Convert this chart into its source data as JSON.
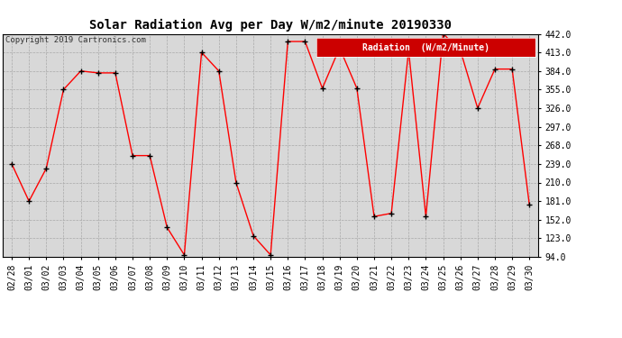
{
  "title": "Solar Radiation Avg per Day W/m2/minute 20190330",
  "copyright": "Copyright 2019 Cartronics.com",
  "legend_label": "Radiation  (W/m2/Minute)",
  "dates": [
    "02/28",
    "03/01",
    "03/02",
    "03/03",
    "03/04",
    "03/05",
    "03/06",
    "03/07",
    "03/08",
    "03/09",
    "03/10",
    "03/11",
    "03/12",
    "03/13",
    "03/14",
    "03/15",
    "03/16",
    "03/17",
    "03/18",
    "03/19",
    "03/20",
    "03/21",
    "03/22",
    "03/23",
    "03/24",
    "03/25",
    "03/26",
    "03/27",
    "03/28",
    "03/29",
    "03/30"
  ],
  "values": [
    239,
    181,
    232,
    355,
    384,
    381,
    381,
    252,
    252,
    140,
    97,
    413,
    384,
    210,
    127,
    97,
    430,
    430,
    357,
    420,
    357,
    157,
    162,
    416,
    157,
    442,
    416,
    326,
    387,
    387,
    175
  ],
  "ylim": [
    94.0,
    442.0
  ],
  "yticks": [
    94.0,
    123.0,
    152.0,
    181.0,
    210.0,
    239.0,
    268.0,
    297.0,
    326.0,
    355.0,
    384.0,
    413.0,
    442.0
  ],
  "line_color": "#ff0000",
  "marker_color": "#000000",
  "bg_color": "#ffffff",
  "plot_bg_color": "#d8d8d8",
  "grid_color": "#aaaaaa",
  "title_fontsize": 10,
  "copyright_fontsize": 6.5,
  "tick_fontsize": 7,
  "legend_bg_color": "#cc0000",
  "legend_text_color": "#ffffff",
  "legend_fontsize": 7
}
